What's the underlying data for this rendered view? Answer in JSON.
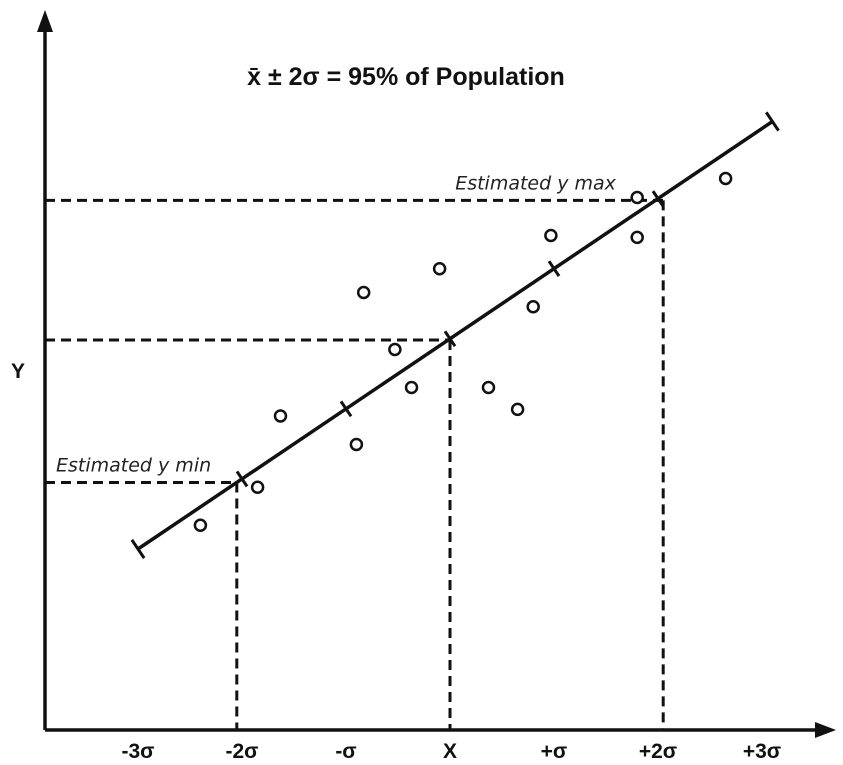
{
  "chart_data": {
    "type": "scatter",
    "title": "x̄ ± 2σ = 95% of Population",
    "xlabel": "",
    "ylabel": "Y",
    "x_ticks": [
      {
        "value": -3,
        "label": "-3σ"
      },
      {
        "value": -2,
        "label": "-2σ"
      },
      {
        "value": -1,
        "label": "-σ"
      },
      {
        "value": 0,
        "label": "X"
      },
      {
        "value": 1,
        "label": "+σ"
      },
      {
        "value": 2,
        "label": "+2σ"
      },
      {
        "value": 3,
        "label": "+3σ"
      }
    ],
    "xlim": [
      -4,
      3.6
    ],
    "ylim": [
      -5,
      4
    ],
    "grid": false,
    "trend_line": {
      "x": [
        -3,
        3.1
      ],
      "y": [
        -2.2,
        2.3
      ],
      "tick_marks_at": [
        -2,
        -1,
        0,
        1,
        2
      ]
    },
    "points": [
      {
        "x": -2.4,
        "y": -1.95
      },
      {
        "x": -1.85,
        "y": -1.55
      },
      {
        "x": -1.63,
        "y": -0.8
      },
      {
        "x": -0.9,
        "y": -1.1
      },
      {
        "x": -0.83,
        "y": 0.5
      },
      {
        "x": -0.53,
        "y": -0.1
      },
      {
        "x": -0.37,
        "y": -0.5
      },
      {
        "x": -0.1,
        "y": 0.75
      },
      {
        "x": 0.37,
        "y": -0.5
      },
      {
        "x": 0.65,
        "y": -0.73
      },
      {
        "x": 0.8,
        "y": 0.35
      },
      {
        "x": 0.97,
        "y": 1.1
      },
      {
        "x": 1.8,
        "y": 1.5
      },
      {
        "x": 1.8,
        "y": 1.08
      },
      {
        "x": 2.65,
        "y": 1.7
      }
    ],
    "annotations": [
      {
        "text": "Estimated y max",
        "x": 2.05,
        "y": 1.47
      },
      {
        "text": "Estimated y min",
        "x": -2.05,
        "y": -1.5
      }
    ],
    "reference_points": [
      {
        "x": -2.05,
        "y": -1.5
      },
      {
        "x": 0,
        "y": 0
      },
      {
        "x": 2.05,
        "y": 1.47
      }
    ]
  }
}
